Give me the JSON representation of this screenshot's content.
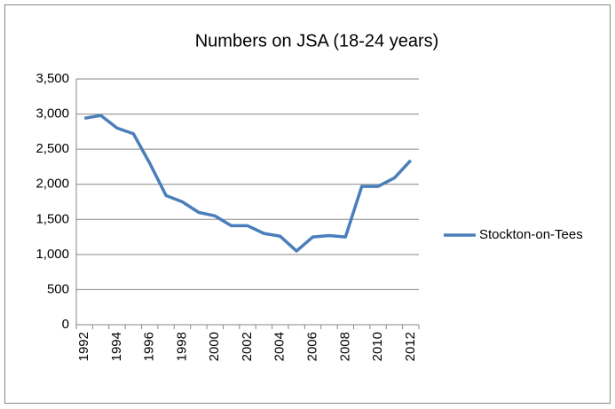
{
  "chart_data": {
    "type": "line",
    "title": "Numbers on JSA (18-24 years)",
    "categories": [
      "1992",
      null,
      "1994",
      null,
      "1996",
      null,
      "1998",
      null,
      "2000",
      null,
      "2002",
      null,
      "2004",
      null,
      "2006",
      null,
      "2008",
      null,
      "2010",
      null,
      "2012"
    ],
    "series": [
      {
        "name": "Stockton-on-Tees",
        "color": "#4a7ebb",
        "values": [
          2940,
          2980,
          2800,
          2720,
          2300,
          1840,
          1750,
          1600,
          1550,
          1410,
          1410,
          1300,
          1260,
          1050,
          1250,
          1270,
          1250,
          1970,
          1970,
          2090,
          2340
        ]
      }
    ],
    "ylim": [
      0,
      3500
    ],
    "yticks": [
      0,
      500,
      {
        "value": 1000,
        "label": "1,000"
      },
      {
        "value": 1500,
        "label": "1,500"
      },
      {
        "value": 2000,
        "label": "2,000"
      },
      {
        "value": 2500,
        "label": "2,500"
      },
      {
        "value": 3000,
        "label": "3,000"
      },
      {
        "value": 3500,
        "label": "3,500"
      }
    ],
    "grid": true,
    "legend": "right"
  }
}
